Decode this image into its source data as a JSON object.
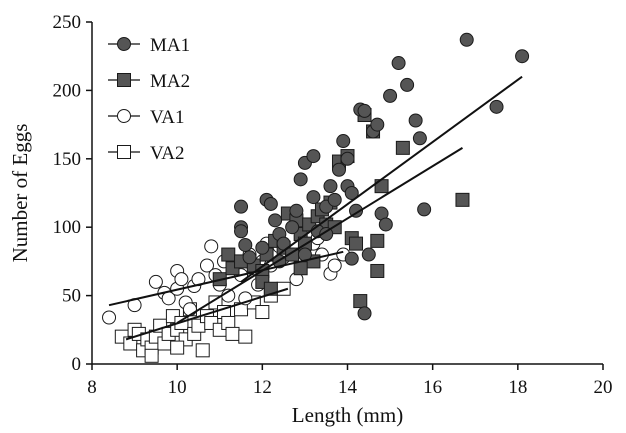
{
  "chart_data": {
    "type": "scatter",
    "title": "",
    "xlabel": "Length (mm)",
    "ylabel": "Number of Eggs",
    "xlim": [
      8,
      20
    ],
    "ylim": [
      0,
      250
    ],
    "xticks": [
      8,
      10,
      12,
      14,
      16,
      18,
      20
    ],
    "yticks": [
      0,
      50,
      100,
      150,
      200,
      250
    ],
    "grid": false,
    "legend_position": "top-left",
    "series": [
      {
        "name": "MA1",
        "marker": "circle",
        "fill": "#555555",
        "points": [
          [
            11.5,
            115
          ],
          [
            11.5,
            100
          ],
          [
            11.5,
            97
          ],
          [
            11.6,
            87
          ],
          [
            11.7,
            78
          ],
          [
            12.1,
            120
          ],
          [
            12.2,
            117
          ],
          [
            12.3,
            105
          ],
          [
            12.4,
            95
          ],
          [
            12.5,
            88
          ],
          [
            12.7,
            100
          ],
          [
            12.8,
            112
          ],
          [
            12.9,
            135
          ],
          [
            13.0,
            147
          ],
          [
            13.2,
            122
          ],
          [
            13.2,
            152
          ],
          [
            13.3,
            97
          ],
          [
            13.5,
            115
          ],
          [
            13.6,
            130
          ],
          [
            13.7,
            120
          ],
          [
            13.8,
            142
          ],
          [
            13.9,
            163
          ],
          [
            14.0,
            150
          ],
          [
            14.0,
            130
          ],
          [
            14.1,
            125
          ],
          [
            14.2,
            112
          ],
          [
            14.3,
            186
          ],
          [
            14.4,
            185
          ],
          [
            14.5,
            80
          ],
          [
            14.6,
            170
          ],
          [
            14.7,
            175
          ],
          [
            14.8,
            110
          ],
          [
            14.9,
            102
          ],
          [
            15.0,
            196
          ],
          [
            15.2,
            220
          ],
          [
            15.4,
            204
          ],
          [
            15.6,
            178
          ],
          [
            15.7,
            165
          ],
          [
            15.8,
            113
          ],
          [
            14.4,
            37
          ],
          [
            14.1,
            77
          ],
          [
            16.8,
            237
          ],
          [
            17.5,
            188
          ],
          [
            18.1,
            225
          ],
          [
            13.0,
            80
          ],
          [
            12.4,
            75
          ],
          [
            13.5,
            95
          ],
          [
            12.0,
            85
          ]
        ]
      },
      {
        "name": "MA2",
        "marker": "square",
        "fill": "#555555",
        "points": [
          [
            11.0,
            62
          ],
          [
            11.2,
            80
          ],
          [
            11.3,
            70
          ],
          [
            11.5,
            75
          ],
          [
            11.8,
            72
          ],
          [
            12.0,
            68
          ],
          [
            12.1,
            80
          ],
          [
            12.3,
            90
          ],
          [
            12.5,
            85
          ],
          [
            12.6,
            110
          ],
          [
            12.7,
            80
          ],
          [
            12.8,
            105
          ],
          [
            12.9,
            95
          ],
          [
            13.0,
            88
          ],
          [
            13.1,
            102
          ],
          [
            13.2,
            75
          ],
          [
            13.3,
            108
          ],
          [
            13.4,
            113
          ],
          [
            13.5,
            102
          ],
          [
            13.6,
            118
          ],
          [
            13.8,
            148
          ],
          [
            14.0,
            152
          ],
          [
            14.1,
            92
          ],
          [
            14.2,
            88
          ],
          [
            14.3,
            46
          ],
          [
            14.4,
            182
          ],
          [
            14.6,
            170
          ],
          [
            14.7,
            90
          ],
          [
            14.7,
            68
          ],
          [
            14.8,
            130
          ],
          [
            15.3,
            158
          ],
          [
            16.7,
            120
          ],
          [
            12.0,
            60
          ],
          [
            12.2,
            55
          ],
          [
            12.9,
            70
          ],
          [
            13.7,
            100
          ]
        ]
      },
      {
        "name": "VA1",
        "marker": "circle",
        "fill": "#ffffff",
        "points": [
          [
            8.4,
            34
          ],
          [
            9.0,
            43
          ],
          [
            9.5,
            60
          ],
          [
            9.7,
            52
          ],
          [
            9.8,
            48
          ],
          [
            10.0,
            68
          ],
          [
            10.0,
            55
          ],
          [
            10.1,
            62
          ],
          [
            10.2,
            45
          ],
          [
            10.4,
            57
          ],
          [
            10.5,
            62
          ],
          [
            10.7,
            72
          ],
          [
            10.8,
            86
          ],
          [
            10.9,
            65
          ],
          [
            11.0,
            58
          ],
          [
            11.1,
            75
          ],
          [
            11.2,
            50
          ],
          [
            11.3,
            72
          ],
          [
            11.5,
            65
          ],
          [
            11.6,
            48
          ],
          [
            11.7,
            80
          ],
          [
            11.8,
            70
          ],
          [
            12.0,
            75
          ],
          [
            12.1,
            88
          ],
          [
            12.2,
            72
          ],
          [
            12.4,
            86
          ],
          [
            12.5,
            78
          ],
          [
            12.7,
            80
          ],
          [
            12.8,
            62
          ],
          [
            13.0,
            85
          ],
          [
            13.2,
            88
          ],
          [
            13.4,
            80
          ],
          [
            13.6,
            66
          ],
          [
            13.7,
            72
          ],
          [
            13.9,
            80
          ],
          [
            10.3,
            40
          ],
          [
            11.9,
            58
          ],
          [
            13.3,
            92
          ]
        ]
      },
      {
        "name": "VA2",
        "marker": "square",
        "fill": "#ffffff",
        "points": [
          [
            8.7,
            20
          ],
          [
            8.9,
            15
          ],
          [
            9.0,
            25
          ],
          [
            9.1,
            22
          ],
          [
            9.2,
            10
          ],
          [
            9.3,
            18
          ],
          [
            9.4,
            12
          ],
          [
            9.5,
            20
          ],
          [
            9.6,
            28
          ],
          [
            9.7,
            15
          ],
          [
            9.8,
            22
          ],
          [
            9.9,
            35
          ],
          [
            10.0,
            25
          ],
          [
            10.1,
            30
          ],
          [
            10.2,
            18
          ],
          [
            10.3,
            40
          ],
          [
            10.4,
            22
          ],
          [
            10.5,
            28
          ],
          [
            10.6,
            10
          ],
          [
            10.7,
            35
          ],
          [
            10.8,
            30
          ],
          [
            10.9,
            45
          ],
          [
            11.0,
            25
          ],
          [
            11.1,
            38
          ],
          [
            11.2,
            30
          ],
          [
            11.3,
            22
          ],
          [
            11.5,
            40
          ],
          [
            11.6,
            20
          ],
          [
            11.8,
            45
          ],
          [
            12.0,
            38
          ],
          [
            12.2,
            50
          ],
          [
            12.5,
            55
          ],
          [
            10.0,
            12
          ],
          [
            9.4,
            6
          ]
        ]
      }
    ],
    "trend_lines": [
      {
        "x": [
          11.5,
          18.1
        ],
        "y": [
          60,
          210
        ]
      },
      {
        "x": [
          8.4,
          13.9
        ],
        "y": [
          43,
          82
        ]
      },
      {
        "x": [
          10.0,
          16.7
        ],
        "y": [
          30,
          158
        ]
      },
      {
        "x": [
          8.8,
          12.6
        ],
        "y": [
          18,
          55
        ]
      }
    ]
  }
}
